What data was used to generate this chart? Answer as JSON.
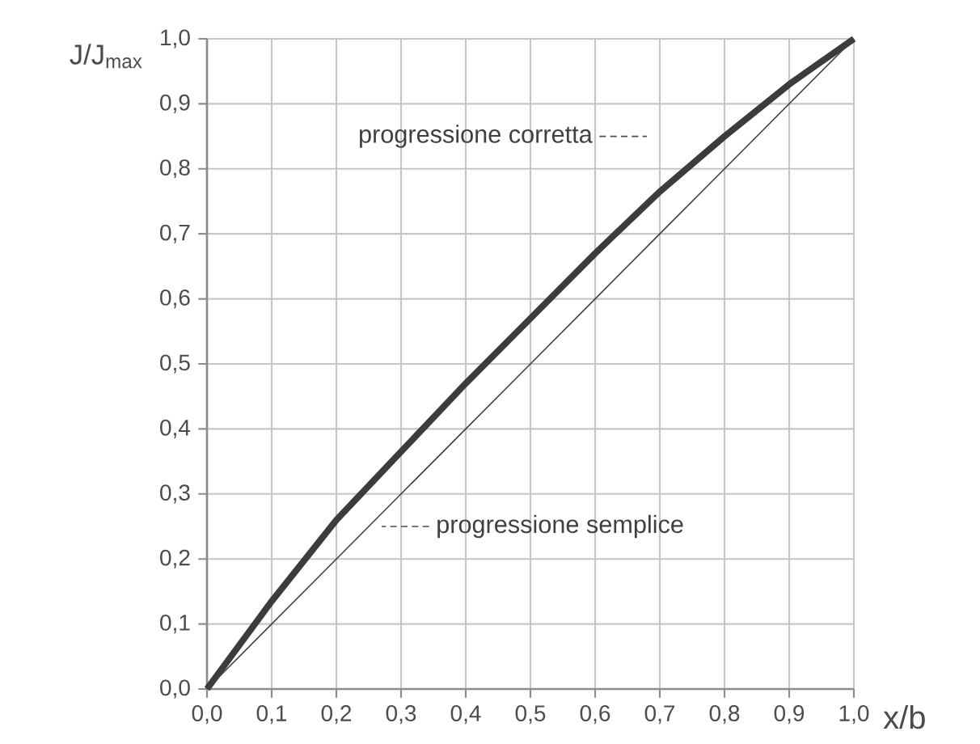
{
  "chart_data": {
    "type": "line",
    "xlabel": "x/b",
    "ylabel": "J/J$_{max}$",
    "xlim": [
      0,
      1
    ],
    "ylim": [
      0,
      1
    ],
    "xticks": [
      {
        "value": 0,
        "label": "0,0"
      },
      {
        "value": 0.1,
        "label": "0,1"
      },
      {
        "value": 0.2,
        "label": "0,2"
      },
      {
        "value": 0.3,
        "label": "0,3"
      },
      {
        "value": 0.4,
        "label": "0,4"
      },
      {
        "value": 0.5,
        "label": "0,5"
      },
      {
        "value": 0.6,
        "label": "0,6"
      },
      {
        "value": 0.7,
        "label": "0,7"
      },
      {
        "value": 0.8,
        "label": "0,8"
      },
      {
        "value": 0.9,
        "label": "0,9"
      },
      {
        "value": 1,
        "label": "1,0"
      }
    ],
    "yticks": [
      {
        "value": 0,
        "label": "0,0"
      },
      {
        "value": 0.1,
        "label": "0,1"
      },
      {
        "value": 0.2,
        "label": "0,2"
      },
      {
        "value": 0.3,
        "label": "0,3"
      },
      {
        "value": 0.4,
        "label": "0,4"
      },
      {
        "value": 0.5,
        "label": "0,5"
      },
      {
        "value": 0.6,
        "label": "0,6"
      },
      {
        "value": 0.7,
        "label": "0,7"
      },
      {
        "value": 0.8,
        "label": "0,8"
      },
      {
        "value": 0.9,
        "label": "0,9"
      },
      {
        "value": 1,
        "label": "1,0"
      }
    ],
    "x": [
      0,
      0.1,
      0.2,
      0.3,
      0.4,
      0.5,
      0.6,
      0.7,
      0.8,
      0.9,
      1.0
    ],
    "grid": true,
    "annotations": [
      "progressione corretta",
      "progressione semplice"
    ],
    "series": [
      {
        "color": "#3c3c3c",
        "values": [
          0,
          0.135,
          0.26,
          0.365,
          0.47,
          0.57,
          0.67,
          0.765,
          0.85,
          0.93,
          1.0
        ]
      },
      {
        "color": "#404040",
        "values": [
          0,
          0.1,
          0.2,
          0.3,
          0.4,
          0.5,
          0.6,
          0.7,
          0.8,
          0.9,
          1.0
        ]
      }
    ]
  }
}
